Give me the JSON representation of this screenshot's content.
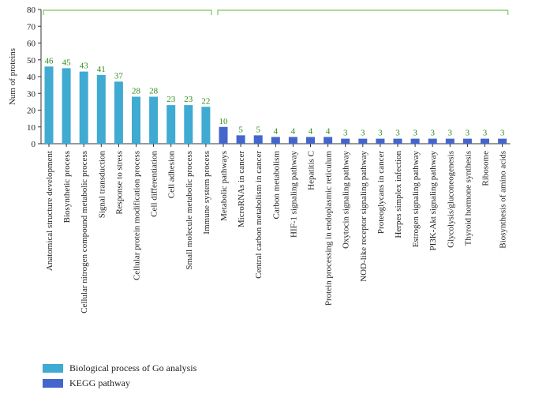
{
  "chart_data": {
    "type": "bar",
    "ylabel": "Num of proteins",
    "ylim": [
      0,
      80
    ],
    "yticks": [
      0,
      10,
      20,
      30,
      40,
      50,
      60,
      70,
      80
    ],
    "groups": [
      {
        "name": "Biological process of Go analysis",
        "color": "#3FAAD2",
        "categories": [
          "Anatomical structure development",
          "Biosynthetic process",
          "Cellular nitrogen compound metabolic process",
          "Signal transduction",
          "Response to stress",
          "Cellular protein modification process",
          "Cell differentiation",
          "Cell adhesion",
          "Small molecule metabolic process",
          "Immune system process"
        ],
        "values": [
          46,
          45,
          43,
          41,
          37,
          28,
          28,
          23,
          23,
          22
        ]
      },
      {
        "name": "KEGG pathway",
        "color": "#4466CC",
        "categories": [
          "Metabolic pathways",
          "MicroRNAs in cancer",
          "Central carbon metabolism in cancer",
          "Carbon metabolism",
          "HIF-1 signaling pathway",
          "Hepatitis C",
          "Protein processing in endoplasmic reticulum",
          "Oxytocin signaling pathway",
          "NOD-like receptor signaling pathway",
          "Proteoglycans in cancer",
          "Herpes simplex infection",
          "Estrogen signaling pathway",
          "PI3K-Akt signaling pathway",
          "Glycolysis/gluconeogenesis",
          "Thyroid hormone synthesis",
          "Ribosome",
          "Biosynthesis of amino acids"
        ],
        "values": [
          10,
          5,
          5,
          4,
          4,
          4,
          4,
          3,
          3,
          3,
          3,
          3,
          3,
          3,
          3,
          3,
          3
        ]
      }
    ],
    "value_label_color": "#2E8B1E",
    "bracket_color": "#8FD07A",
    "axis_color": "#333333"
  }
}
